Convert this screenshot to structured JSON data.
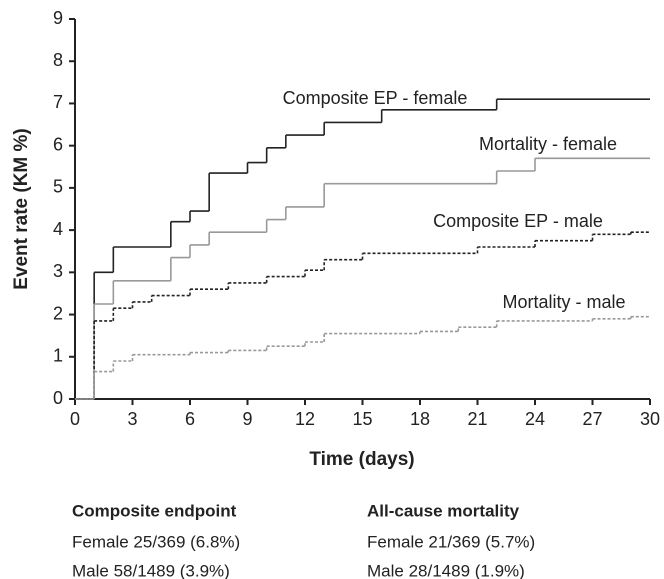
{
  "chart_data": {
    "type": "step",
    "xlabel": "Time (days)",
    "ylabel": "Event rate (KM %)",
    "xlim": [
      0,
      30
    ],
    "ylim": [
      0,
      9
    ],
    "xticks": [
      0,
      3,
      6,
      9,
      12,
      15,
      18,
      21,
      24,
      27,
      30
    ],
    "yticks": [
      0,
      1,
      2,
      3,
      4,
      5,
      6,
      7,
      8,
      9
    ],
    "series": [
      {
        "name": "Composite EP - female",
        "color": "#222222",
        "style": "solid",
        "x": [
          0,
          1,
          2,
          5,
          6,
          7,
          9,
          10,
          11,
          13,
          16,
          22
        ],
        "values": [
          0,
          3.0,
          3.6,
          4.2,
          4.45,
          5.35,
          5.6,
          5.95,
          6.25,
          6.55,
          6.85,
          7.1
        ]
      },
      {
        "name": "Mortality - female",
        "color": "#999999",
        "style": "solid",
        "x": [
          0,
          1,
          2,
          5,
          6,
          7,
          10,
          11,
          13,
          22,
          24
        ],
        "values": [
          0,
          2.25,
          2.8,
          3.35,
          3.65,
          3.95,
          4.25,
          4.55,
          5.1,
          5.4,
          5.7
        ]
      },
      {
        "name": "Composite EP - male",
        "color": "#222222",
        "style": "dashed",
        "x": [
          0,
          1,
          2,
          3,
          4,
          6,
          8,
          10,
          12,
          13,
          15,
          21,
          24,
          27,
          29
        ],
        "values": [
          0,
          1.85,
          2.15,
          2.3,
          2.45,
          2.6,
          2.75,
          2.9,
          3.05,
          3.3,
          3.45,
          3.6,
          3.75,
          3.9,
          3.95
        ]
      },
      {
        "name": "Mortality - male",
        "color": "#999999",
        "style": "dashed",
        "x": [
          0,
          1,
          2,
          3,
          6,
          8,
          10,
          12,
          13,
          18,
          20,
          22,
          27,
          29
        ],
        "values": [
          0,
          0.65,
          0.9,
          1.05,
          1.1,
          1.15,
          1.25,
          1.35,
          1.55,
          1.6,
          1.7,
          1.85,
          1.9,
          1.95
        ]
      }
    ]
  },
  "footer": {
    "columns": [
      {
        "heading": "Composite endpoint",
        "rows": [
          "Female 25/369 (6.8%)",
          "Male 58/1489 (3.9%)"
        ]
      },
      {
        "heading": "All-cause mortality",
        "rows": [
          "Female 21/369 (5.7%)",
          "Male 28/1489 (1.9%)"
        ]
      }
    ]
  }
}
